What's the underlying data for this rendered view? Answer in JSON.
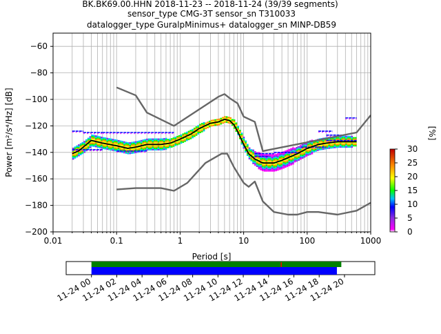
{
  "header": {
    "line1": "BK.BK69.00.HHN   2018-11-23 -- 2018-11-24  (39/39 segments)",
    "line2": "sensor_type CMG-3T sensor_sn T310033",
    "line3": "datalogger_type GuralpMinimus+ datalogger_sn MINP-DB59"
  },
  "colors": {
    "mean_curve": "#000000",
    "noise_models": "#666666",
    "coverage_good": "#008000",
    "coverage_data": "#0000ff",
    "gap_marker": "#ff0000"
  },
  "chart_data": [
    {
      "type": "heatmap",
      "title": "",
      "xlabel": "Period [s]",
      "ylabel": "Power [m²/s⁴/Hz] [dB]",
      "xscale": "log",
      "xlim": [
        0.01,
        1000
      ],
      "ylim": [
        -200,
        -50
      ],
      "x_ticks": [
        0.01,
        0.1,
        1,
        10,
        100,
        1000
      ],
      "x_tick_labels": [
        "0.01",
        "0.1",
        "1",
        "10",
        "100",
        "1000"
      ],
      "y_ticks": [
        -60,
        -80,
        -100,
        -120,
        -140,
        -160,
        -180,
        -200
      ],
      "grid": true,
      "colorbar": {
        "label": "[%]",
        "min": 0,
        "max": 30,
        "ticks": [
          0,
          5,
          10,
          15,
          20,
          25,
          30
        ]
      },
      "series": [
        {
          "name": "",
          "kind": "mean",
          "x": [
            0.02,
            0.025,
            0.03,
            0.04,
            0.06,
            0.1,
            0.15,
            0.2,
            0.3,
            0.5,
            0.7,
            1.0,
            1.5,
            2.0,
            3.0,
            4.0,
            5.0,
            6.0,
            7.0,
            8.0,
            10,
            12,
            15,
            18,
            20,
            25,
            30,
            40,
            50,
            70,
            100,
            150,
            200,
            300,
            400,
            600
          ],
          "y": [
            -141,
            -139,
            -136,
            -131,
            -133,
            -135,
            -137,
            -136,
            -134,
            -134,
            -133,
            -130,
            -126,
            -122,
            -118,
            -117,
            -115,
            -116,
            -119,
            -124,
            -134,
            -141,
            -145,
            -147,
            -148,
            -148,
            -148,
            -146,
            -144,
            -141,
            -137,
            -134,
            -133,
            -132,
            -132,
            -132
          ]
        },
        {
          "name": "",
          "kind": "noise_model_high",
          "x": [
            0.1,
            0.2,
            0.3,
            0.8,
            4,
            5,
            6,
            8,
            10,
            15,
            20,
            600,
            1000
          ],
          "y": [
            -91,
            -97,
            -110,
            -120,
            -98,
            -96,
            -99,
            -103,
            -113,
            -117,
            -139,
            -125,
            -112
          ]
        },
        {
          "name": "",
          "kind": "noise_model_low",
          "x": [
            0.1,
            0.2,
            0.5,
            0.8,
            1.3,
            2.5,
            4.5,
            5.5,
            7,
            10,
            12,
            15,
            20,
            30,
            50,
            70,
            100,
            150,
            300,
            600,
            1000
          ],
          "y": [
            -168,
            -167,
            -167,
            -169,
            -163,
            -148,
            -141,
            -141,
            -151,
            -163,
            -166,
            -162,
            -177,
            -185,
            -187,
            -187,
            -185,
            -185,
            -187,
            -184,
            -178
          ]
        }
      ],
      "probability_band": {
        "x": [
          0.02,
          0.03,
          0.04,
          0.06,
          0.1,
          0.15,
          0.2,
          0.3,
          0.5,
          0.7,
          1.0,
          1.5,
          2.0,
          3.0,
          4.0,
          5.0,
          6.0,
          7.0,
          8.0,
          10,
          12,
          15,
          18,
          20,
          25,
          30,
          40,
          50,
          70,
          100,
          150,
          200,
          300,
          400,
          600
        ],
        "y": [
          -141,
          -136,
          -131,
          -133,
          -135,
          -137,
          -136,
          -134,
          -134,
          -133,
          -130,
          -126,
          -122,
          -118,
          -117,
          -115,
          -116,
          -119,
          -124,
          -134,
          -141,
          -145,
          -147,
          -148,
          -148,
          -148,
          -146,
          -144,
          -141,
          -137,
          -134,
          -133,
          -132,
          -132,
          -132
        ],
        "spread": [
          4,
          4,
          4,
          4,
          4,
          4,
          4,
          4,
          4,
          3,
          3,
          3,
          3,
          2,
          2,
          2,
          2,
          3,
          3,
          4,
          4,
          5,
          6,
          6,
          6,
          6,
          6,
          6,
          5,
          5,
          4,
          4,
          4,
          4,
          3
        ]
      },
      "sparse_segments": [
        {
          "x": [
            0.02,
            0.03
          ],
          "y": -124
        },
        {
          "x": [
            0.03,
            0.06
          ],
          "y": -125
        },
        {
          "x": [
            0.06,
            0.1
          ],
          "y": -125
        },
        {
          "x": [
            0.1,
            0.8
          ],
          "y": -125
        },
        {
          "x": [
            0.02,
            0.06
          ],
          "y": -138
        },
        {
          "x": [
            0.1,
            0.3
          ],
          "y": -139
        },
        {
          "x": [
            15,
            30
          ],
          "y": -141
        },
        {
          "x": [
            15,
            25
          ],
          "y": -143
        },
        {
          "x": [
            30,
            80
          ],
          "y": -140
        },
        {
          "x": [
            80,
            200
          ],
          "y": -136
        },
        {
          "x": [
            200,
            600
          ],
          "y": -131
        },
        {
          "x": [
            200,
            350
          ],
          "y": -127
        },
        {
          "x": [
            150,
            250
          ],
          "y": -124
        },
        {
          "x": [
            400,
            600
          ],
          "y": -114
        }
      ]
    },
    {
      "type": "bar",
      "title": "",
      "x_tick_labels": [
        "11-24 00",
        "11-24 02",
        "11-24 04",
        "11-24 06",
        "11-24 08",
        "11-24 10",
        "11-24 12",
        "11-24 14",
        "11-24 16",
        "11-24 18",
        "11-24 20"
      ],
      "xlim_hours": [
        -2,
        22.4
      ],
      "series": [
        {
          "name": "",
          "kind": "coverage",
          "start_h": 0,
          "end_h": 19.75,
          "color": "#008000"
        },
        {
          "name": "",
          "kind": "data",
          "start_h": 0,
          "end_h": 19.4,
          "color": "#0000ff"
        }
      ],
      "gap_hours": [
        15.0
      ]
    }
  ]
}
